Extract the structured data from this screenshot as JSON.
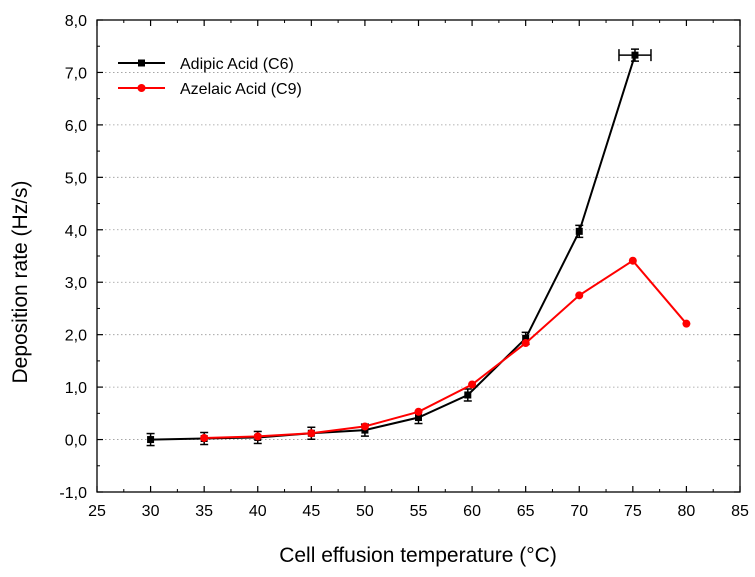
{
  "chart_data": {
    "type": "line",
    "title": "",
    "xlabel": "Cell effusion temperature (°C)",
    "ylabel": "Deposition rate (Hz/s)",
    "xlim": [
      25,
      85
    ],
    "ylim": [
      -1.0,
      8.0
    ],
    "xticks": [
      "25",
      "30",
      "35",
      "40",
      "45",
      "50",
      "55",
      "60",
      "65",
      "70",
      "75",
      "80",
      "85"
    ],
    "yticks": [
      "-1,0",
      "0,0",
      "1,0",
      "2,0",
      "3,0",
      "4,0",
      "5,0",
      "6,0",
      "7,0",
      "8,0"
    ],
    "grid": "horizontal dotted",
    "legend_position": "top-left",
    "series": [
      {
        "name": "Adipic Acid (C6)",
        "color": "#000000",
        "marker": "square",
        "points": [
          {
            "x": 30.0,
            "y": 0.0
          },
          {
            "x": 35.0,
            "y": 0.02
          },
          {
            "x": 40.0,
            "y": 0.04
          },
          {
            "x": 45.0,
            "y": 0.12
          },
          {
            "x": 50.0,
            "y": 0.18
          },
          {
            "x": 55.0,
            "y": 0.42
          },
          {
            "x": 59.6,
            "y": 0.85
          },
          {
            "x": 65.0,
            "y": 1.93
          },
          {
            "x": 70.0,
            "y": 3.97
          },
          {
            "x": 75.2,
            "y": 7.33
          }
        ]
      },
      {
        "name": "Azelaic Acid (C9)",
        "color": "#ff0000",
        "marker": "circle",
        "points": [
          {
            "x": 35.0,
            "y": 0.03
          },
          {
            "x": 40.0,
            "y": 0.06
          },
          {
            "x": 45.0,
            "y": 0.12
          },
          {
            "x": 50.0,
            "y": 0.25
          },
          {
            "x": 55.0,
            "y": 0.53
          },
          {
            "x": 60.0,
            "y": 1.05
          },
          {
            "x": 65.0,
            "y": 1.84
          },
          {
            "x": 70.0,
            "y": 2.75
          },
          {
            "x": 75.0,
            "y": 3.41
          },
          {
            "x": 80.0,
            "y": 2.21
          }
        ]
      }
    ]
  }
}
